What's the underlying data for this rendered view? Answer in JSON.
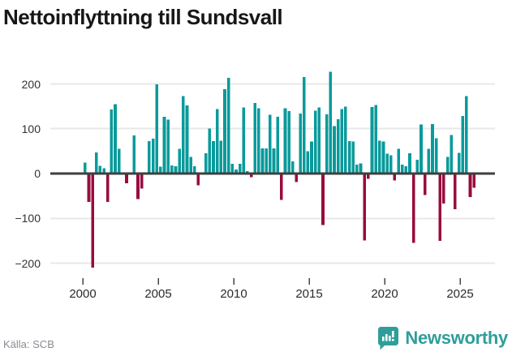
{
  "title": "Nettoinflyttning till Sundsvall",
  "source": "Källa: SCB",
  "branding": {
    "name": "Newsworthy"
  },
  "colors": {
    "positive_bar": "#099a9b",
    "negative_bar": "#990b3e",
    "zero_line": "#3f3f3f",
    "gridline": "#e8e8e8",
    "brand_teal": "#2f9e9b"
  },
  "chart_data": {
    "type": "bar",
    "title": "Nettoinflyttning till Sundsvall",
    "frequency": "quarterly",
    "start": "2000-Q1",
    "end": "2025-Q4",
    "xlabel": "",
    "ylabel": "",
    "ylim": [
      -230,
      245
    ],
    "grid": "horizontal",
    "y_tick_labels": [
      "200",
      "100",
      "0",
      "−100",
      "−200"
    ],
    "y_tick_values": [
      200,
      100,
      0,
      -100,
      -200
    ],
    "x_tick_labels": [
      "2000",
      "2005",
      "2010",
      "2015",
      "2020",
      "2025"
    ],
    "values": [
      24,
      -63,
      -210,
      47,
      17,
      12,
      -63,
      143,
      155,
      55,
      2,
      -22,
      2,
      85,
      -57,
      -33,
      2,
      72,
      78,
      199,
      15,
      127,
      120,
      18,
      16,
      55,
      173,
      152,
      37,
      16,
      -26,
      2,
      45,
      100,
      72,
      144,
      73,
      188,
      213,
      22,
      9,
      22,
      147,
      5,
      -8,
      157,
      146,
      56,
      56,
      131,
      56,
      127,
      -59,
      146,
      139,
      27,
      -19,
      134,
      215,
      50,
      71,
      140,
      147,
      -115,
      132,
      227,
      106,
      121,
      144,
      149,
      72,
      71,
      20,
      23,
      -149,
      -12,
      148,
      153,
      73,
      71,
      44,
      41,
      -15,
      55,
      20,
      16,
      45,
      -155,
      31,
      109,
      -48,
      55,
      110,
      79,
      -150,
      -67,
      37,
      86,
      -80,
      46,
      128,
      173,
      -52,
      -32
    ]
  }
}
